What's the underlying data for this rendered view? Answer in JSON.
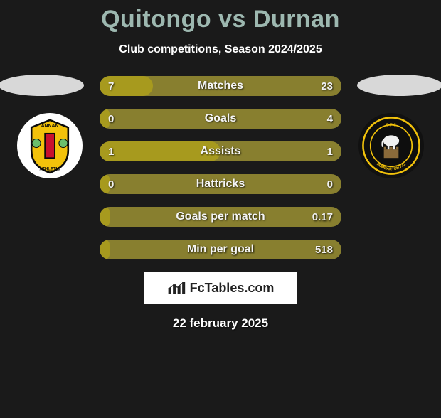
{
  "title": "Quitongo vs Durnan",
  "subtitle": "Club competitions, Season 2024/2025",
  "colors": {
    "title": "#9db8b0",
    "background": "#1a1a1a",
    "ellipse_left": "#d8d8d8",
    "ellipse_right": "#d8d8d8",
    "bar_track": "#887f2f",
    "bar_fill": "#a79a1e",
    "row_text": "#f5f5f5"
  },
  "badges": {
    "left": {
      "name": "Annan Athletic",
      "bg": "#ffffff",
      "shield_fill": "#f2c20b",
      "shield_stroke": "#0a0a0a",
      "inner_fill": "#c8102e",
      "text_top": "ANNAN",
      "text_bottom": "ATHLETIC"
    },
    "right": {
      "name": "Dumbarton FC",
      "bg": "#0e0e0e",
      "ring_fill": "#f2c20b",
      "elephant_fill": "#f0f0f0",
      "text": "DUMBARTON F.C."
    }
  },
  "rows": [
    {
      "label": "Matches",
      "left": "7",
      "right": "23",
      "fill_pct": 22
    },
    {
      "label": "Goals",
      "left": "0",
      "right": "4",
      "fill_pct": 4
    },
    {
      "label": "Assists",
      "left": "1",
      "right": "1",
      "fill_pct": 50
    },
    {
      "label": "Hattricks",
      "left": "0",
      "right": "0",
      "fill_pct": 4
    },
    {
      "label": "Goals per match",
      "left": "",
      "right": "0.17",
      "fill_pct": 4
    },
    {
      "label": "Min per goal",
      "left": "",
      "right": "518",
      "fill_pct": 4
    }
  ],
  "brand": "FcTables.com",
  "date": "22 february 2025"
}
